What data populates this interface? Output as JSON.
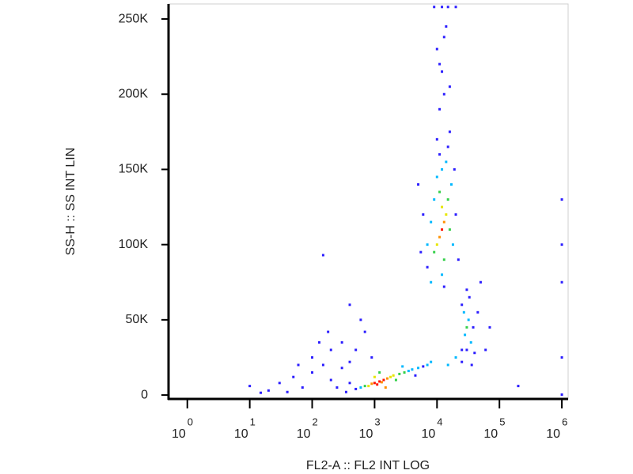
{
  "chart_data": {
    "type": "scatter",
    "xlabel": "FL2-A :: FL2 INT LOG",
    "ylabel": "SS-H :: SS INT LIN",
    "xscale": "log",
    "xlim": [
      0.5,
      1260000
    ],
    "xticks": [
      {
        "value": 1,
        "label": "10",
        "exponent": "0"
      },
      {
        "value": 10,
        "label": "10",
        "exponent": "1"
      },
      {
        "value": 100,
        "label": "10",
        "exponent": "2"
      },
      {
        "value": 1000,
        "label": "10",
        "exponent": "3"
      },
      {
        "value": 10000,
        "label": "10",
        "exponent": "4"
      },
      {
        "value": 100000,
        "label": "10",
        "exponent": "5"
      },
      {
        "value": 1000000,
        "label": "10",
        "exponent": "6"
      }
    ],
    "ylim": [
      -2600,
      260000
    ],
    "yticks": [
      0,
      {
        "value": 50000,
        "label": "50K"
      },
      {
        "value": 100000,
        "label": "100K"
      },
      {
        "value": 150000,
        "label": "150K"
      },
      {
        "value": 200000,
        "label": "200K"
      },
      {
        "value": 250000,
        "label": "250K"
      }
    ],
    "series": [
      {
        "color": "#2a1cff",
        "x": [
          20,
          30,
          50,
          70,
          100,
          100,
          150,
          200,
          200,
          250,
          300,
          300,
          400,
          60,
          10,
          130,
          350,
          40,
          500,
          15,
          180,
          700,
          600,
          900,
          150,
          400,
          4500,
          6000,
          500,
          400,
          6000,
          20000,
          11000,
          15000,
          7000,
          13000,
          19000,
          5500,
          22000,
          16000,
          10000,
          5000,
          11000,
          13000,
          12000,
          10000,
          14000,
          12000,
          15000,
          9000,
          16000,
          11000,
          13000,
          20000,
          30000,
          25000,
          38000,
          33000,
          25000,
          40000,
          36000,
          25000,
          30000,
          45000,
          50000,
          60000,
          70000,
          1000000,
          1000000,
          1000000,
          1000000,
          1000000,
          200000
        ],
        "values": [
          3000,
          8000,
          12000,
          5000,
          15000,
          25000,
          20000,
          10000,
          30000,
          5000,
          18000,
          35000,
          22000,
          20000,
          6000,
          35000,
          2000,
          2000,
          30000,
          1500,
          42000,
          42000,
          50000,
          25000,
          93000,
          60000,
          13000,
          19000,
          4000,
          8000,
          120000,
          120000,
          160000,
          165000,
          85000,
          72000,
          150000,
          95000,
          90000,
          175000,
          170000,
          140000,
          190000,
          200000,
          215000,
          230000,
          245000,
          258000,
          258000,
          258000,
          205000,
          220000,
          238000,
          258000,
          30000,
          60000,
          45000,
          65000,
          30000,
          28000,
          20000,
          22000,
          70000,
          55000,
          75000,
          30000,
          45000,
          300,
          25000,
          75000,
          130000,
          100000,
          6000
        ]
      },
      {
        "color": "#00b8ff",
        "x": [
          3500,
          4000,
          5000,
          600,
          7000,
          8000,
          2800,
          8000,
          17000,
          10000,
          7000,
          18000,
          12000,
          14000,
          9000,
          8000,
          12000,
          28000,
          32000,
          27000,
          35000,
          20000,
          15000
        ],
        "values": [
          16000,
          17000,
          18000,
          5000,
          20000,
          22000,
          19000,
          115000,
          140000,
          145000,
          100000,
          100000,
          80000,
          155000,
          130000,
          75000,
          150000,
          40000,
          50000,
          55000,
          35000,
          25000,
          20000
        ]
      },
      {
        "color": "#34d04a",
        "x": [
          2500,
          3000,
          700,
          2200,
          1200,
          15000,
          9000,
          11000,
          16000,
          13000,
          30000
        ],
        "values": [
          14000,
          15000,
          6000,
          10000,
          15000,
          130000,
          95000,
          135000,
          110000,
          90000,
          45000
        ]
      },
      {
        "color": "#e6e600",
        "x": [
          1800,
          2000,
          800,
          1000,
          14000,
          12000,
          10000
        ],
        "values": [
          12000,
          13000,
          6000,
          12000,
          120000,
          125000,
          100000
        ]
      },
      {
        "color": "#ff9000",
        "x": [
          1300,
          1600,
          900,
          1500,
          13000,
          11000
        ],
        "values": [
          8500,
          11000,
          7500,
          5000,
          115000,
          105000
        ]
      },
      {
        "color": "#ff1400",
        "x": [
          1000,
          1200,
          1400,
          1100,
          12000
        ],
        "values": [
          8000,
          9000,
          10000,
          7000,
          110000
        ]
      }
    ]
  }
}
